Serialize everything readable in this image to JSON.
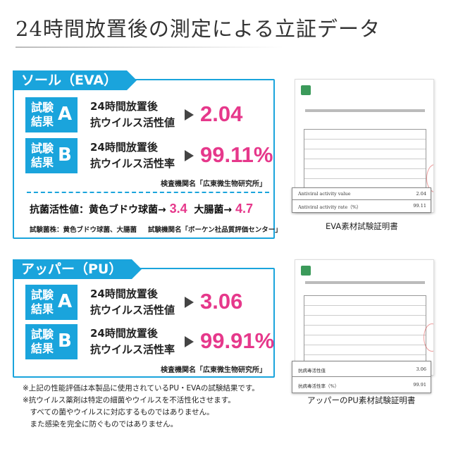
{
  "title": "24時間放置後の測定による立証データ",
  "sole": {
    "tag": "ソール（EVA）",
    "results": [
      {
        "badge_top": "試験",
        "badge_bottom": "結果",
        "letter": "A",
        "metric_line1": "24時間放置後",
        "metric_line2": "抗ウイルス活性値",
        "value": "2.04"
      },
      {
        "badge_top": "試験",
        "badge_bottom": "結果",
        "letter": "B",
        "metric_line1": "24時間放置後",
        "metric_line2": "抗ウイルス活性率",
        "value": "99.11%"
      }
    ],
    "institution": "検査機関名「広東微生物研究所」",
    "antibacterial": {
      "label": "抗菌活性値：",
      "bact1_name": "黄色ブドウ球菌",
      "bact1_value": "3.4",
      "bact2_name": "大腸菌",
      "bact2_value": "4.7",
      "arrow": "→",
      "strains": "試験菌株：黄色ブドウ球菌、大腸菌",
      "institution": "試験機関名「ボーケン社品質評価センター」"
    }
  },
  "upper": {
    "tag": "アッパー（PU）",
    "results": [
      {
        "badge_top": "試験",
        "badge_bottom": "結果",
        "letter": "A",
        "metric_line1": "24時間放置後",
        "metric_line2": "抗ウイルス活性値",
        "value": "3.06"
      },
      {
        "badge_top": "試験",
        "badge_bottom": "結果",
        "letter": "B",
        "metric_line1": "24時間放置後",
        "metric_line2": "抗ウイルス活性率",
        "value": "99.91%"
      }
    ],
    "institution": "検査機関名「広東微生物研究所」"
  },
  "certificates": [
    {
      "caption": "EVA素材試験証明書",
      "summary": [
        {
          "label": "Antiviral activity value",
          "value": "2.04"
        },
        {
          "label": "Antiviral activity rate（%）",
          "value": "99.11"
        }
      ]
    },
    {
      "caption": "アッパーのPU素材試験証明書",
      "summary": [
        {
          "label": "抗病毒活性值",
          "value": "3.06"
        },
        {
          "label": "抗病毒活性率（%）",
          "value": "99.91"
        }
      ]
    }
  ],
  "notes": [
    "※上記の性能評価は本製品に使用されているPU・EVAの試験結果です。",
    "※抗ウイルス薬剤は特定の細菌やウイルスを不活性化させます。",
    "　すべての菌やウイルスに対応するものではありません。",
    "　また感染を完全に防ぐものではありません。"
  ]
}
